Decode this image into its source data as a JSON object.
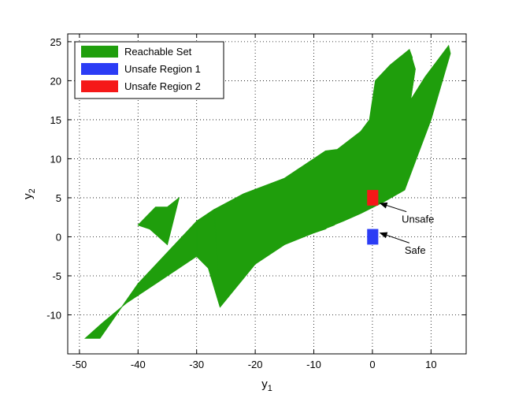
{
  "chart_data": {
    "type": "area",
    "title": "",
    "xlabel": "y",
    "xlabel_sub": "1",
    "ylabel": "y",
    "ylabel_sub": "2",
    "xlim": [
      -52,
      16
    ],
    "ylim": [
      -15,
      26
    ],
    "xticks": [
      -50,
      -40,
      -30,
      -20,
      -10,
      0,
      10
    ],
    "yticks": [
      -10,
      -5,
      0,
      5,
      10,
      15,
      20,
      25
    ],
    "xtick_labels": [
      "-50",
      "-40",
      "-30",
      "-20",
      "-10",
      "0",
      "10"
    ],
    "ytick_labels": [
      "-10",
      "-5",
      "0",
      "5",
      "10",
      "15",
      "20",
      "25"
    ],
    "grid": true,
    "grid_style": "dotted",
    "legend_position": "top-left",
    "series": [
      {
        "name": "Reachable Set",
        "color": "#1f9e0c",
        "kind": "polygon",
        "points": [
          [
            -49,
            -13
          ],
          [
            -46.5,
            -13
          ],
          [
            -40,
            -6
          ],
          [
            -30,
            2
          ],
          [
            -27,
            3.5
          ],
          [
            -22,
            5.5
          ],
          [
            -15,
            7.5
          ],
          [
            -10,
            10
          ],
          [
            -8,
            11
          ],
          [
            -6,
            11.2
          ],
          [
            -2,
            13.5
          ],
          [
            -0.5,
            15
          ],
          [
            0.5,
            20
          ],
          [
            3,
            22
          ],
          [
            6.3,
            24
          ],
          [
            7.3,
            21.5
          ],
          [
            6.5,
            17.5
          ],
          [
            9,
            20.5
          ],
          [
            13,
            24.5
          ],
          [
            13.3,
            23.5
          ],
          [
            10,
            15
          ],
          [
            7,
            9
          ],
          [
            5.5,
            6
          ],
          [
            2,
            4.5
          ],
          [
            -2,
            3
          ],
          [
            -5,
            2
          ],
          [
            -10,
            0.5
          ],
          [
            -15,
            -1
          ],
          [
            -20,
            -3.5
          ],
          [
            -26,
            -9
          ],
          [
            -28,
            -4
          ],
          [
            -30,
            -2.5
          ],
          [
            -37,
            -6
          ],
          [
            -42,
            -8.5
          ],
          [
            -46,
            -11
          ]
        ],
        "overlays": [
          [
            [
              -40,
              1.5
            ],
            [
              -37,
              3.8
            ],
            [
              -35,
              3.8
            ],
            [
              -33,
              5
            ],
            [
              -35,
              -1
            ],
            [
              -38,
              1
            ]
          ],
          [
            [
              -30,
              2
            ],
            [
              -27,
              3.5
            ],
            [
              -26,
              -9
            ],
            [
              -28,
              -4
            ],
            [
              -30,
              -2.5
            ]
          ],
          [
            [
              -10,
              0.5
            ],
            [
              -8,
              1
            ],
            [
              -5,
              2.8
            ],
            [
              -6.5,
              1.5
            ]
          ],
          [
            [
              6.3,
              24
            ],
            [
              7.3,
              21.5
            ],
            [
              6.5,
              17.5
            ],
            [
              6.8,
              23
            ]
          ]
        ]
      },
      {
        "name": "Unsafe Region 1",
        "color": "#2b3cf5",
        "kind": "rect",
        "x": [
          -0.9,
          1.0
        ],
        "y": [
          -1.0,
          1.0
        ]
      },
      {
        "name": "Unsafe Region 2",
        "color": "#f51818",
        "kind": "rect",
        "x": [
          -0.9,
          1.0
        ],
        "y": [
          4.0,
          6.0
        ]
      }
    ],
    "annotations": [
      {
        "text": "Unsafe",
        "point": [
          1.3,
          4.3
        ],
        "label_at": [
          5,
          1.8
        ]
      },
      {
        "text": "Safe",
        "point": [
          1.3,
          0.5
        ],
        "label_at": [
          5.5,
          -2.2
        ]
      }
    ]
  }
}
